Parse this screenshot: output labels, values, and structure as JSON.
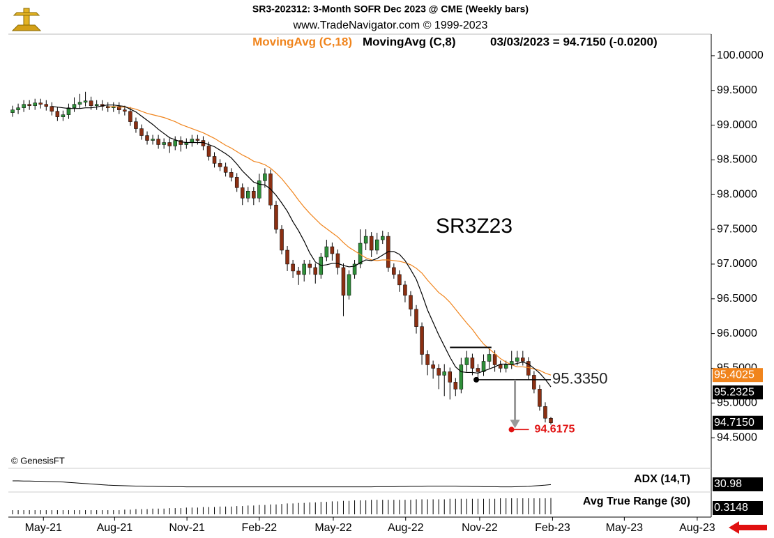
{
  "chart_data": {
    "type": "candlestick",
    "title": "SR3-202312:  3-Month SOFR Dec 2023 @ CME  (Weekly bars)",
    "subtitle": "www.TradeNavigator.com © 1999-2023",
    "readout": "03/03/2023 = 94.7150 (-0.0200)",
    "watermark": "© GenesisFT",
    "label": "SR3Z23",
    "last_label": "94.7150",
    "up_color": "#2f8f3a",
    "down_color": "#8b2f12",
    "xlim": [
      -0.75,
      124.6
    ],
    "xticks": [
      {
        "value": 5.5,
        "label": "May-21"
      },
      {
        "value": 18.2,
        "label": "Aug-21"
      },
      {
        "value": 31.1,
        "label": "Nov-21"
      },
      {
        "value": 44.0,
        "label": "Feb-22"
      },
      {
        "value": 57.2,
        "label": "May-22"
      },
      {
        "value": 70.1,
        "label": "Aug-22"
      },
      {
        "value": 83.3,
        "label": "Nov-22"
      },
      {
        "value": 96.3,
        "label": "Feb-23"
      },
      {
        "value": 109.1,
        "label": "May-23"
      },
      {
        "value": 122.1,
        "label": "Aug-23"
      }
    ],
    "ylim": [
      94.1,
      100.25
    ],
    "yticks": [
      {
        "value": 100,
        "label": "100.0000"
      },
      {
        "value": 99.5,
        "label": "99.5000"
      },
      {
        "value": 99,
        "label": "99.0000"
      },
      {
        "value": 98.5,
        "label": "98.5000"
      },
      {
        "value": 98,
        "label": "98.0000"
      },
      {
        "value": 97.5,
        "label": "97.5000"
      },
      {
        "value": 97,
        "label": "97.0000"
      },
      {
        "value": 96.5,
        "label": "96.5000"
      },
      {
        "value": 96,
        "label": "96.0000"
      },
      {
        "value": 95.5,
        "label": "95.5000"
      },
      {
        "value": 95,
        "label": "95.0000"
      },
      {
        "value": 94.5,
        "label": "94.5000"
      }
    ],
    "open": [
      99.18,
      99.22,
      99.25,
      99.3,
      99.28,
      99.32,
      99.3,
      99.27,
      99.2,
      99.12,
      99.15,
      99.25,
      99.3,
      99.33,
      99.35,
      99.28,
      99.3,
      99.27,
      99.25,
      99.27,
      99.22,
      99.2,
      99.05,
      98.95,
      98.85,
      98.78,
      98.8,
      98.72,
      98.75,
      98.7,
      98.78,
      98.72,
      98.75,
      98.8,
      98.78,
      98.7,
      98.55,
      98.45,
      98.4,
      98.32,
      98.25,
      98.1,
      97.95,
      98.05,
      97.95,
      98.2,
      98.3,
      97.85,
      97.5,
      97.2,
      97.0,
      96.9,
      96.85,
      97.0,
      96.95,
      96.85,
      97.1,
      97.25,
      97.15,
      96.95,
      96.55,
      96.85,
      97.0,
      97.3,
      97.4,
      97.2,
      97.35,
      97.4,
      96.95,
      96.85,
      96.7,
      96.55,
      96.35,
      96.1,
      95.7,
      95.55,
      95.5,
      95.4,
      95.45,
      95.3,
      95.2,
      95.55,
      95.65,
      95.5,
      95.45,
      95.6,
      95.7,
      95.55,
      95.5,
      95.55,
      95.6,
      95.65,
      95.6,
      95.4,
      95.2,
      94.95,
      94.78
    ],
    "high": [
      99.28,
      99.31,
      99.36,
      99.36,
      99.38,
      99.38,
      99.36,
      99.33,
      99.26,
      99.21,
      99.31,
      99.4,
      99.45,
      99.48,
      99.41,
      99.36,
      99.36,
      99.33,
      99.33,
      99.33,
      99.28,
      99.26,
      99.11,
      99.01,
      98.91,
      98.86,
      98.86,
      98.81,
      98.81,
      98.84,
      98.84,
      98.81,
      98.86,
      98.86,
      98.84,
      98.76,
      98.61,
      98.51,
      98.46,
      98.38,
      98.31,
      98.16,
      98.11,
      98.11,
      98.3,
      98.38,
      98.36,
      97.91,
      97.56,
      97.26,
      97.06,
      96.96,
      97.06,
      97.06,
      97.01,
      97.16,
      97.35,
      97.31,
      97.21,
      97.01,
      96.91,
      97.06,
      97.5,
      97.5,
      97.46,
      97.45,
      97.48,
      97.46,
      97.01,
      96.91,
      96.76,
      96.61,
      96.41,
      96.16,
      95.76,
      95.61,
      95.56,
      95.56,
      95.51,
      95.36,
      95.65,
      95.75,
      95.71,
      95.56,
      95.7,
      95.78,
      95.76,
      95.61,
      95.61,
      95.75,
      95.75,
      95.75,
      95.66,
      95.46,
      95.26,
      95.01,
      94.8
    ],
    "low": [
      99.12,
      99.16,
      99.19,
      99.22,
      99.22,
      99.24,
      99.21,
      99.14,
      99.06,
      99.06,
      99.09,
      99.19,
      99.24,
      99.27,
      99.22,
      99.22,
      99.21,
      99.19,
      99.19,
      99.16,
      99.14,
      98.99,
      98.89,
      98.79,
      98.72,
      98.72,
      98.66,
      98.66,
      98.6,
      98.64,
      98.62,
      98.66,
      98.69,
      98.72,
      98.64,
      98.49,
      98.39,
      98.34,
      98.26,
      98.19,
      98.04,
      97.85,
      97.89,
      97.85,
      97.89,
      98.1,
      97.79,
      97.44,
      97.14,
      96.9,
      96.8,
      96.7,
      96.75,
      96.85,
      96.72,
      96.79,
      97.04,
      97.05,
      96.85,
      96.25,
      96.49,
      96.79,
      96.94,
      97.2,
      97.1,
      97.14,
      97.29,
      96.89,
      96.79,
      96.6,
      96.45,
      96.25,
      96.0,
      95.55,
      95.4,
      95.35,
      95.2,
      95.1,
      95.05,
      95.1,
      95.14,
      95.45,
      95.4,
      95.35,
      95.39,
      95.5,
      95.45,
      95.44,
      95.44,
      95.49,
      95.54,
      95.54,
      95.34,
      95.14,
      94.89,
      94.72,
      94.69
    ],
    "close": [
      99.22,
      99.25,
      99.3,
      99.28,
      99.32,
      99.3,
      99.27,
      99.2,
      99.12,
      99.15,
      99.25,
      99.3,
      99.33,
      99.35,
      99.28,
      99.3,
      99.27,
      99.25,
      99.27,
      99.22,
      99.2,
      99.05,
      98.95,
      98.85,
      98.78,
      98.8,
      98.72,
      98.75,
      98.7,
      98.78,
      98.72,
      98.75,
      98.8,
      98.78,
      98.7,
      98.55,
      98.45,
      98.4,
      98.32,
      98.25,
      98.1,
      97.95,
      98.05,
      97.95,
      98.2,
      98.3,
      97.85,
      97.5,
      97.2,
      97.0,
      96.9,
      96.85,
      97.0,
      96.95,
      96.85,
      97.1,
      97.25,
      97.15,
      96.95,
      96.55,
      96.85,
      97.0,
      97.3,
      97.4,
      97.2,
      97.35,
      97.4,
      96.95,
      96.85,
      96.7,
      96.55,
      96.35,
      96.1,
      95.7,
      95.55,
      95.5,
      95.4,
      95.45,
      95.3,
      95.2,
      95.55,
      95.65,
      95.5,
      95.45,
      95.6,
      95.7,
      95.55,
      95.5,
      95.55,
      95.6,
      95.65,
      95.6,
      95.4,
      95.2,
      94.95,
      94.78,
      94.715
    ],
    "series": [
      {
        "name": "MovingAvg (C,18)",
        "color": "#f0841c",
        "values": [
          null,
          null,
          null,
          null,
          null,
          null,
          null,
          null,
          null,
          null,
          null,
          null,
          null,
          null,
          null,
          null,
          null,
          99.26,
          99.27,
          99.26,
          99.26,
          99.25,
          99.23,
          99.2,
          99.17,
          99.15,
          99.13,
          99.11,
          99.08,
          99.05,
          99.01,
          98.98,
          98.95,
          98.92,
          98.89,
          98.85,
          98.81,
          98.76,
          98.71,
          98.67,
          98.62,
          98.57,
          98.53,
          98.48,
          98.46,
          98.43,
          98.38,
          98.31,
          98.23,
          98.13,
          98.03,
          97.92,
          97.82,
          97.73,
          97.65,
          97.57,
          97.51,
          97.45,
          97.39,
          97.31,
          97.24,
          97.19,
          97.14,
          97.09,
          97.06,
          97.05,
          97.06,
          97.06,
          97.05,
          97.04,
          97.02,
          96.99,
          96.94,
          96.87,
          96.77,
          96.68,
          96.59,
          96.53,
          96.45,
          96.35,
          96.25,
          96.15,
          96.06,
          95.95,
          95.85,
          95.78,
          95.71,
          95.64,
          95.59,
          95.55,
          95.52,
          95.52,
          95.51,
          95.49,
          95.47,
          95.43,
          95.4025
        ]
      },
      {
        "name": "MovingAvg (C,8)",
        "color": "#000000",
        "values": [
          null,
          null,
          null,
          null,
          null,
          null,
          null,
          99.27,
          99.26,
          99.25,
          99.24,
          99.24,
          99.24,
          99.25,
          99.25,
          99.26,
          99.28,
          99.29,
          99.29,
          99.28,
          99.27,
          99.23,
          99.19,
          99.13,
          99.07,
          99.01,
          98.94,
          98.88,
          98.82,
          98.79,
          98.76,
          98.75,
          98.75,
          98.75,
          98.75,
          98.72,
          98.69,
          98.64,
          98.59,
          98.53,
          98.44,
          98.34,
          98.26,
          98.18,
          98.15,
          98.14,
          98.08,
          97.99,
          97.88,
          97.76,
          97.61,
          97.48,
          97.33,
          97.16,
          97.03,
          96.98,
          96.99,
          97.01,
          97.01,
          96.98,
          96.96,
          96.97,
          97.02,
          97.06,
          97.05,
          97.08,
          97.13,
          97.18,
          97.18,
          97.14,
          97.05,
          96.92,
          96.78,
          96.57,
          96.34,
          96.16,
          95.98,
          95.82,
          95.66,
          95.52,
          95.45,
          95.44,
          95.44,
          95.43,
          95.46,
          95.49,
          95.52,
          95.56,
          95.56,
          95.55,
          95.57,
          95.59,
          95.56,
          95.5,
          95.43,
          95.34,
          95.2325
        ]
      }
    ],
    "box_line": {
      "value": 95.8,
      "x": [
        78,
        85.4
      ]
    },
    "level": {
      "value": 95.335,
      "label": "95.3350",
      "x": [
        82.7,
        96
      ]
    },
    "target": {
      "value": 94.6175,
      "label": "94.6175",
      "x": 89.6
    },
    "adx": {
      "name": "ADX (14,T)",
      "ylim": [
        0,
        100
      ],
      "values": [
        50,
        50,
        49,
        49,
        48,
        48,
        47,
        46,
        45,
        44,
        42,
        40,
        38,
        36,
        34,
        32,
        30,
        28,
        27,
        26,
        25,
        24,
        23,
        23,
        22,
        22,
        21,
        21,
        20,
        20,
        20,
        19,
        19,
        19,
        19,
        19,
        19,
        19,
        19,
        19,
        19,
        19,
        19,
        19,
        19,
        19,
        19,
        19,
        19,
        19,
        19,
        19,
        19,
        19,
        19,
        19,
        19,
        19,
        19,
        19,
        19,
        19,
        19,
        19,
        19,
        20,
        20,
        20,
        20,
        21,
        21,
        22,
        22,
        22,
        23,
        23,
        23,
        23,
        23,
        23,
        22,
        22,
        21,
        21,
        20,
        20,
        20,
        19,
        19,
        19,
        20,
        21,
        22,
        24,
        26,
        28,
        30.98
      ]
    },
    "atr": {
      "name": "Avg True Range (30)",
      "ylim": [
        0,
        0.35
      ],
      "values": [
        0.08,
        0.08,
        0.08,
        0.08,
        0.08,
        0.08,
        0.08,
        0.08,
        0.08,
        0.08,
        0.08,
        0.08,
        0.08,
        0.08,
        0.08,
        0.08,
        0.08,
        0.08,
        0.08,
        0.08,
        0.09,
        0.09,
        0.1,
        0.1,
        0.1,
        0.11,
        0.11,
        0.11,
        0.12,
        0.12,
        0.12,
        0.13,
        0.13,
        0.13,
        0.14,
        0.14,
        0.14,
        0.15,
        0.15,
        0.15,
        0.16,
        0.16,
        0.17,
        0.17,
        0.18,
        0.18,
        0.19,
        0.19,
        0.2,
        0.21,
        0.21,
        0.22,
        0.22,
        0.23,
        0.23,
        0.24,
        0.24,
        0.25,
        0.25,
        0.26,
        0.26,
        0.27,
        0.27,
        0.27,
        0.28,
        0.28,
        0.28,
        0.28,
        0.28,
        0.28,
        0.28,
        0.28,
        0.29,
        0.29,
        0.29,
        0.29,
        0.29,
        0.29,
        0.3,
        0.3,
        0.3,
        0.3,
        0.3,
        0.3,
        0.3,
        0.3,
        0.3,
        0.31,
        0.31,
        0.31,
        0.31,
        0.31,
        0.31,
        0.31,
        0.31,
        0.31,
        0.3148
      ]
    }
  }
}
